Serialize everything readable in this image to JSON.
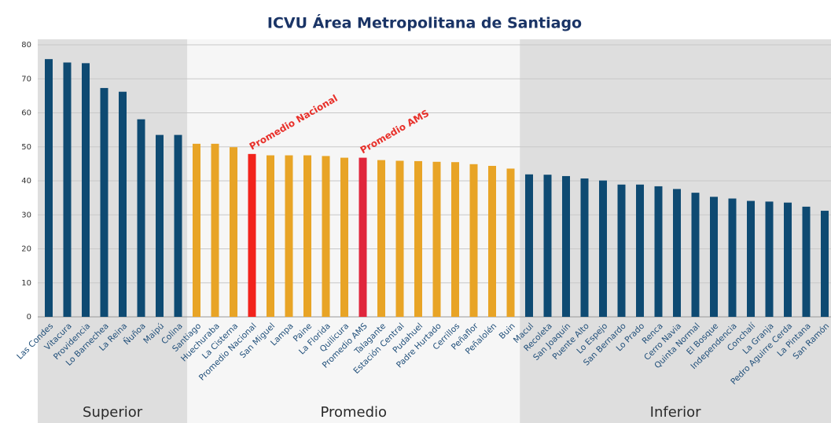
{
  "chart_data": {
    "type": "bar",
    "title": "ICVU Área Metropolitana de Santiago",
    "categories": [
      "Las Condes",
      "Vitacura",
      "Providencia",
      "Lo Barnechea",
      "La Reina",
      "Ñuñoa",
      "Maipú",
      "Colina",
      "Santiago",
      "Huechuraba",
      "La Cisterna",
      "Promedio Nacional",
      "San Miguel",
      "Lampa",
      "Paine",
      "La Florida",
      "Quilicura",
      "Promedio AMS",
      "Talagante",
      "Estación Central",
      "Pudahuel",
      "Padre Hurtado",
      "Cerrillos",
      "Peñaflor",
      "Peñalolén",
      "Buin",
      "Macul",
      "Recoleta",
      "San Joaquín",
      "Puente Alto",
      "Lo Espejo",
      "San Bernardo",
      "Lo Prado",
      "Renca",
      "Cerro Navia",
      "Quinta Normal",
      "El Bosque",
      "Independencia",
      "Conchalí",
      "La Granja",
      "Pedro Aguirre Cerda",
      "La Pintana",
      "San Ramón"
    ],
    "values": [
      75.8,
      74.8,
      74.6,
      67.3,
      66.2,
      58.1,
      53.5,
      53.5,
      50.9,
      50.9,
      49.9,
      47.9,
      47.5,
      47.5,
      47.5,
      47.3,
      46.8,
      46.8,
      46.1,
      45.9,
      45.8,
      45.6,
      45.5,
      44.9,
      44.4,
      43.6,
      41.9,
      41.8,
      41.4,
      40.7,
      40.1,
      38.9,
      38.9,
      38.4,
      37.6,
      36.5,
      35.3,
      34.8,
      34.1,
      33.9,
      33.6,
      32.4,
      31.2
    ],
    "groups": [
      {
        "label": "Superior",
        "count": 8,
        "color": "#0e4a72",
        "background": "#dedede"
      },
      {
        "label": "Promedio",
        "count": 18,
        "color": "#e8a426",
        "background": "#f6f6f6"
      },
      {
        "label": "Inferior",
        "count": 17,
        "color": "#0e4a72",
        "background": "#dedede"
      }
    ],
    "annotations": [
      "Promedio Nacional",
      "Promedio AMS"
    ],
    "annotation_colors": [
      "#f2231c",
      "#e0263c"
    ],
    "ylim": [
      0,
      80
    ],
    "yticks": [
      0,
      10,
      20,
      30,
      40,
      50,
      60,
      70,
      80
    ],
    "grid": true
  }
}
